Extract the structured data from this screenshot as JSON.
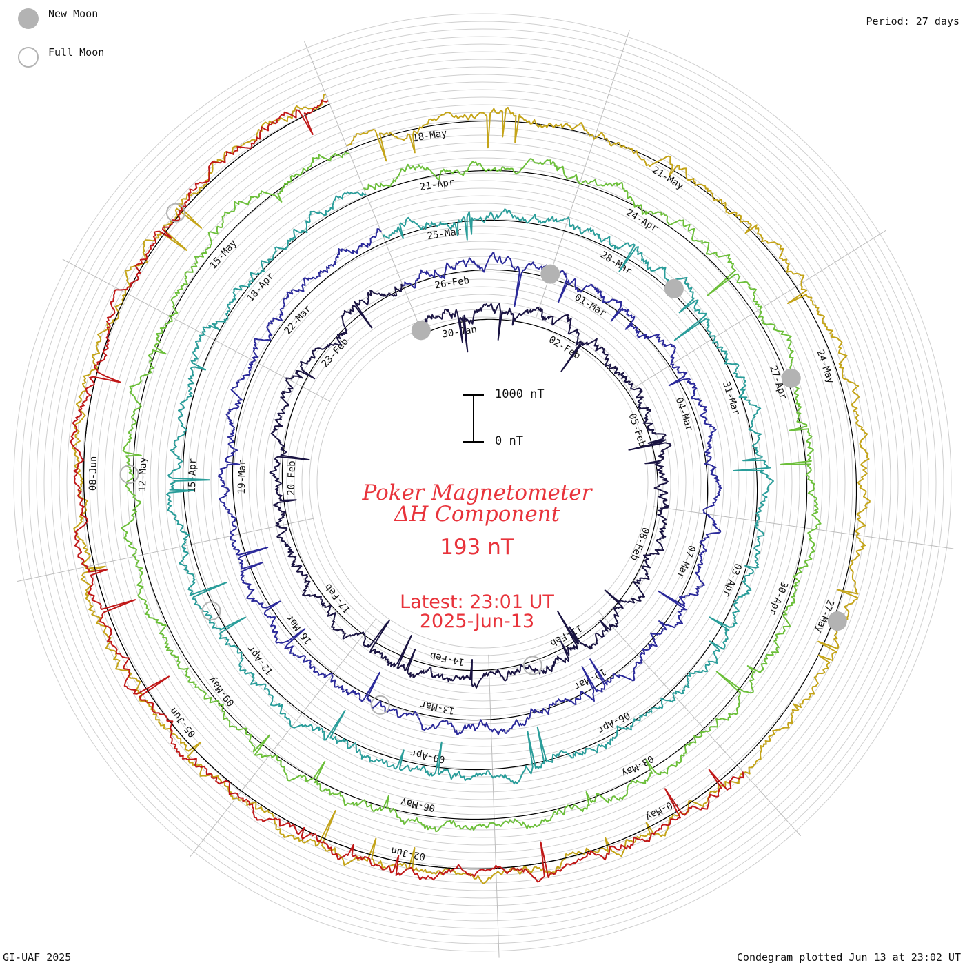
{
  "plot": {
    "title_line1": "Poker Magnetometer",
    "title_line2": "ΔH Component",
    "current_value": "193 nT",
    "latest_line1": "Latest: 23:01 UT",
    "latest_line2": "2025-Jun-13",
    "period_label": "Period: 27 days",
    "footer_left": "GI-UAF 2025",
    "footer_right": "Condegram plotted Jun 13 at 23:02 UT",
    "scale_top_label": "1000 nT",
    "scale_bottom_label": "0 nT"
  },
  "legend": {
    "new_moon_label": "New Moon",
    "full_moon_label": "Full Moon",
    "new_moon_color": "#b3b3b3",
    "full_moon_color": "#b3b3b3"
  },
  "chart_data": {
    "type": "line",
    "title": "Poker Magnetometer ΔH Component",
    "period_days": 27,
    "units": "nT",
    "scale_bar": [
      0,
      1000
    ],
    "series": [
      {
        "start": "2025-01-29",
        "end": "2025-02-25",
        "color": "#1a1442",
        "date_labels": [
          "30-Jan",
          "02-Feb",
          "05-Feb",
          "08-Feb",
          "11-Feb",
          "14-Feb",
          "17-Feb",
          "20-Feb",
          "23-Feb"
        ]
      },
      {
        "start": "2025-02-25",
        "end": "2025-03-24",
        "color": "#2b2a9a",
        "date_labels": [
          "26-Feb",
          "01-Mar",
          "04-Mar",
          "07-Mar",
          "10-Mar",
          "13-Mar",
          "16-Mar",
          "19-Mar",
          "22-Mar"
        ]
      },
      {
        "start": "2025-03-24",
        "end": "2025-04-20",
        "color": "#2a9d9a",
        "date_labels": [
          "25-Mar",
          "28-Mar",
          "31-Mar",
          "03-Apr",
          "06-Apr",
          "09-Apr",
          "12-Apr",
          "15-Apr",
          "18-Apr"
        ]
      },
      {
        "start": "2025-04-20",
        "end": "2025-05-17",
        "color": "#6cbf3a",
        "date_labels": [
          "21-Apr",
          "24-Apr",
          "27-Apr",
          "30-Apr",
          "03-May",
          "06-May",
          "09-May",
          "12-May",
          "15-May"
        ]
      },
      {
        "start": "2025-05-17",
        "end": "2025-06-13",
        "color": "#c4a419",
        "date_labels": [
          "18-May",
          "21-May",
          "24-May",
          "27-May",
          "30-May",
          "02-Jun",
          "05-Jun",
          "08-Jun"
        ]
      },
      {
        "start": "2025-05-29",
        "end": "2025-06-13",
        "color": "#c01818",
        "date_labels": []
      }
    ],
    "new_moon_dates": [
      "2025-01-29",
      "2025-02-28",
      "2025-03-29",
      "2025-04-27",
      "2025-05-27"
    ],
    "full_moon_dates": [
      "2025-02-12",
      "2025-03-14",
      "2025-04-13",
      "2025-05-12",
      "2025-06-11"
    ],
    "grid": true
  }
}
